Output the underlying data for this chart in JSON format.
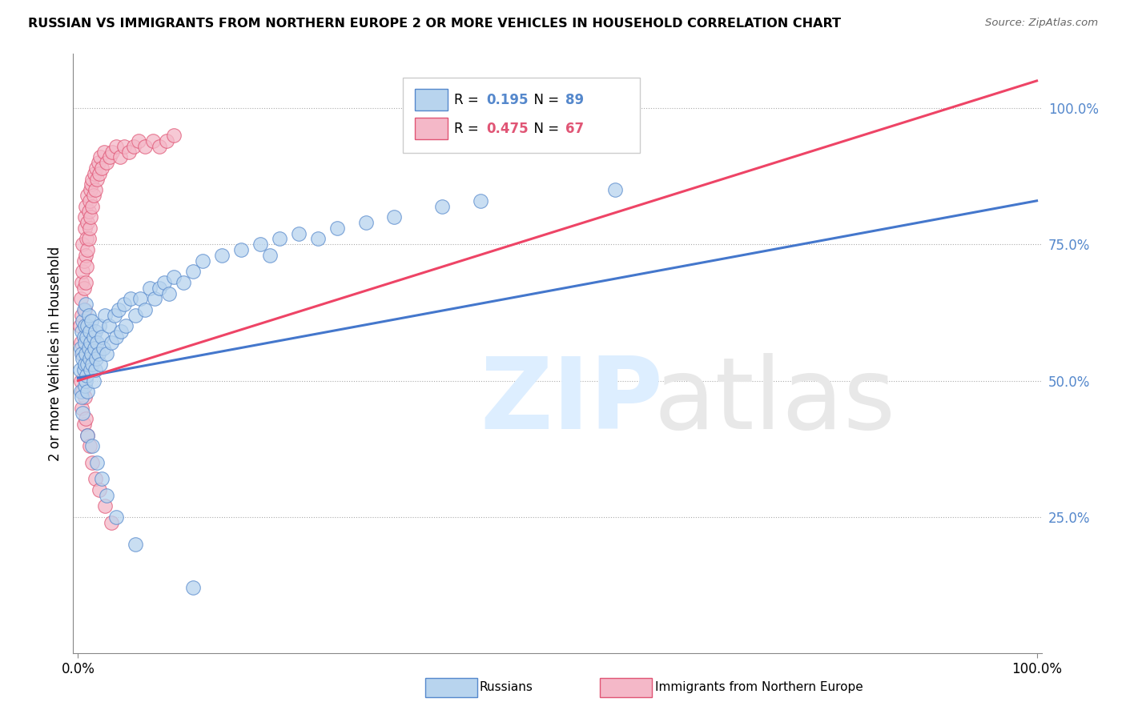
{
  "title": "RUSSIAN VS IMMIGRANTS FROM NORTHERN EUROPE 2 OR MORE VEHICLES IN HOUSEHOLD CORRELATION CHART",
  "source": "Source: ZipAtlas.com",
  "ylabel": "2 or more Vehicles in Household",
  "ytick_vals": [
    0.25,
    0.5,
    0.75,
    1.0
  ],
  "r_blue": 0.195,
  "n_blue": 89,
  "r_pink": 0.475,
  "n_pink": 67,
  "blue_fill": "#b8d4ee",
  "blue_edge": "#5588cc",
  "pink_fill": "#f4b8c8",
  "pink_edge": "#e05575",
  "blue_line": "#4477cc",
  "pink_line": "#ee4466",
  "legend_label_blue": "Russians",
  "legend_label_pink": "Immigrants from Northern Europe",
  "blue_x": [
    0.002,
    0.003,
    0.003,
    0.004,
    0.004,
    0.004,
    0.005,
    0.005,
    0.005,
    0.006,
    0.006,
    0.006,
    0.007,
    0.007,
    0.007,
    0.007,
    0.008,
    0.008,
    0.008,
    0.009,
    0.009,
    0.01,
    0.01,
    0.01,
    0.011,
    0.011,
    0.012,
    0.012,
    0.013,
    0.013,
    0.014,
    0.014,
    0.015,
    0.016,
    0.016,
    0.017,
    0.018,
    0.018,
    0.019,
    0.02,
    0.021,
    0.022,
    0.023,
    0.025,
    0.026,
    0.028,
    0.03,
    0.032,
    0.035,
    0.038,
    0.04,
    0.042,
    0.045,
    0.048,
    0.05,
    0.055,
    0.06,
    0.065,
    0.07,
    0.075,
    0.08,
    0.085,
    0.09,
    0.095,
    0.1,
    0.11,
    0.12,
    0.13,
    0.15,
    0.17,
    0.19,
    0.2,
    0.21,
    0.23,
    0.25,
    0.27,
    0.3,
    0.33,
    0.38,
    0.42,
    0.01,
    0.015,
    0.02,
    0.025,
    0.03,
    0.04,
    0.06,
    0.12,
    0.56
  ],
  "blue_y": [
    0.52,
    0.56,
    0.48,
    0.55,
    0.59,
    0.47,
    0.54,
    0.61,
    0.44,
    0.58,
    0.52,
    0.63,
    0.49,
    0.57,
    0.53,
    0.6,
    0.55,
    0.5,
    0.64,
    0.51,
    0.58,
    0.53,
    0.6,
    0.48,
    0.56,
    0.62,
    0.54,
    0.59,
    0.52,
    0.57,
    0.55,
    0.61,
    0.53,
    0.58,
    0.5,
    0.56,
    0.52,
    0.59,
    0.54,
    0.57,
    0.55,
    0.6,
    0.53,
    0.58,
    0.56,
    0.62,
    0.55,
    0.6,
    0.57,
    0.62,
    0.58,
    0.63,
    0.59,
    0.64,
    0.6,
    0.65,
    0.62,
    0.65,
    0.63,
    0.67,
    0.65,
    0.67,
    0.68,
    0.66,
    0.69,
    0.68,
    0.7,
    0.72,
    0.73,
    0.74,
    0.75,
    0.73,
    0.76,
    0.77,
    0.76,
    0.78,
    0.79,
    0.8,
    0.82,
    0.83,
    0.4,
    0.38,
    0.35,
    0.32,
    0.29,
    0.25,
    0.2,
    0.12,
    0.85
  ],
  "pink_x": [
    0.002,
    0.003,
    0.003,
    0.004,
    0.004,
    0.005,
    0.005,
    0.005,
    0.006,
    0.006,
    0.007,
    0.007,
    0.007,
    0.008,
    0.008,
    0.008,
    0.009,
    0.009,
    0.01,
    0.01,
    0.01,
    0.011,
    0.011,
    0.012,
    0.012,
    0.013,
    0.013,
    0.014,
    0.015,
    0.015,
    0.016,
    0.017,
    0.018,
    0.019,
    0.02,
    0.021,
    0.022,
    0.023,
    0.025,
    0.027,
    0.03,
    0.033,
    0.036,
    0.04,
    0.044,
    0.048,
    0.053,
    0.058,
    0.063,
    0.07,
    0.078,
    0.085,
    0.092,
    0.1,
    0.003,
    0.004,
    0.005,
    0.006,
    0.007,
    0.008,
    0.01,
    0.012,
    0.015,
    0.018,
    0.022,
    0.028,
    0.035
  ],
  "pink_y": [
    0.6,
    0.65,
    0.57,
    0.68,
    0.62,
    0.7,
    0.75,
    0.55,
    0.72,
    0.67,
    0.78,
    0.63,
    0.8,
    0.73,
    0.68,
    0.82,
    0.76,
    0.71,
    0.79,
    0.84,
    0.74,
    0.81,
    0.76,
    0.83,
    0.78,
    0.85,
    0.8,
    0.86,
    0.82,
    0.87,
    0.84,
    0.88,
    0.85,
    0.89,
    0.87,
    0.9,
    0.88,
    0.91,
    0.89,
    0.92,
    0.9,
    0.91,
    0.92,
    0.93,
    0.91,
    0.93,
    0.92,
    0.93,
    0.94,
    0.93,
    0.94,
    0.93,
    0.94,
    0.95,
    0.5,
    0.45,
    0.48,
    0.42,
    0.47,
    0.43,
    0.4,
    0.38,
    0.35,
    0.32,
    0.3,
    0.27,
    0.24
  ]
}
